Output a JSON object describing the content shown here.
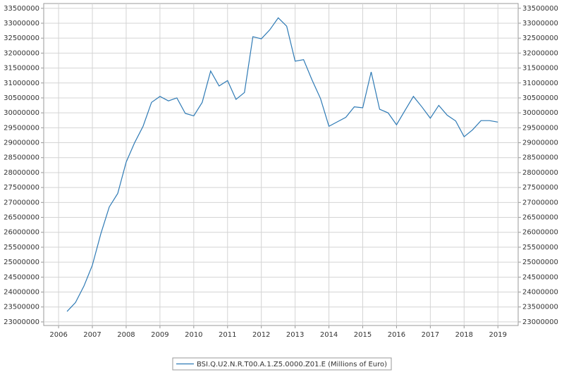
{
  "chart_data": {
    "type": "line",
    "x": [
      2006.25,
      2006.5,
      2006.75,
      2007,
      2007.25,
      2007.5,
      2007.75,
      2008,
      2008.25,
      2008.5,
      2008.75,
      2009,
      2009.25,
      2009.5,
      2009.75,
      2010,
      2010.25,
      2010.5,
      2010.75,
      2011,
      2011.25,
      2011.5,
      2011.75,
      2012,
      2012.25,
      2012.5,
      2012.75,
      2013,
      2013.25,
      2013.5,
      2013.75,
      2014,
      2014.25,
      2014.5,
      2014.75,
      2015,
      2015.25,
      2015.5,
      2015.75,
      2016,
      2016.25,
      2016.5,
      2016.75,
      2017,
      2017.25,
      2017.5,
      2017.75,
      2018,
      2018.25,
      2018.5,
      2018.75,
      2019
    ],
    "series": [
      {
        "name": "BSI.Q.U2.N.R.T00.A.1.Z5.0000.Z01.E (Millions of Euro)",
        "color": "#2e7ab5",
        "values": [
          23350000,
          23650000,
          24200000,
          24900000,
          25950000,
          26850000,
          27300000,
          28350000,
          29000000,
          29550000,
          30350000,
          30550000,
          30400000,
          30500000,
          29980000,
          29900000,
          30350000,
          31400000,
          30900000,
          31080000,
          30450000,
          30680000,
          32550000,
          32480000,
          32780000,
          33180000,
          32900000,
          31730000,
          31780000,
          31100000,
          30480000,
          29550000,
          29700000,
          29850000,
          30200000,
          30170000,
          31370000,
          30120000,
          30000000,
          29600000,
          30080000,
          30550000,
          30200000,
          29820000,
          30250000,
          29920000,
          29730000,
          29200000,
          29430000,
          29740000,
          29740000,
          29690000
        ]
      }
    ],
    "xlim": [
      2005.56,
      2019.6
    ],
    "xticks": [
      2006,
      2007,
      2008,
      2009,
      2010,
      2011,
      2012,
      2013,
      2014,
      2015,
      2016,
      2017,
      2018,
      2019
    ],
    "ylim": [
      22880000,
      33660000
    ],
    "yticks": [
      23000000,
      23500000,
      24000000,
      24500000,
      25000000,
      25500000,
      26000000,
      26500000,
      27000000,
      27500000,
      28000000,
      28500000,
      29000000,
      29500000,
      30000000,
      30500000,
      31000000,
      31500000,
      32000000,
      32500000,
      33000000,
      33500000
    ],
    "y2lim": [
      22880000,
      33660000
    ],
    "y2ticks": [
      23000000,
      23500000,
      24000000,
      24500000,
      25000000,
      25500000,
      26000000,
      26500000,
      27000000,
      27500000,
      28000000,
      28500000,
      29000000,
      29500000,
      30000000,
      30500000,
      31000000,
      31500000,
      32000000,
      32500000,
      33000000,
      33500000
    ],
    "grid": true,
    "legend": "bottom"
  }
}
